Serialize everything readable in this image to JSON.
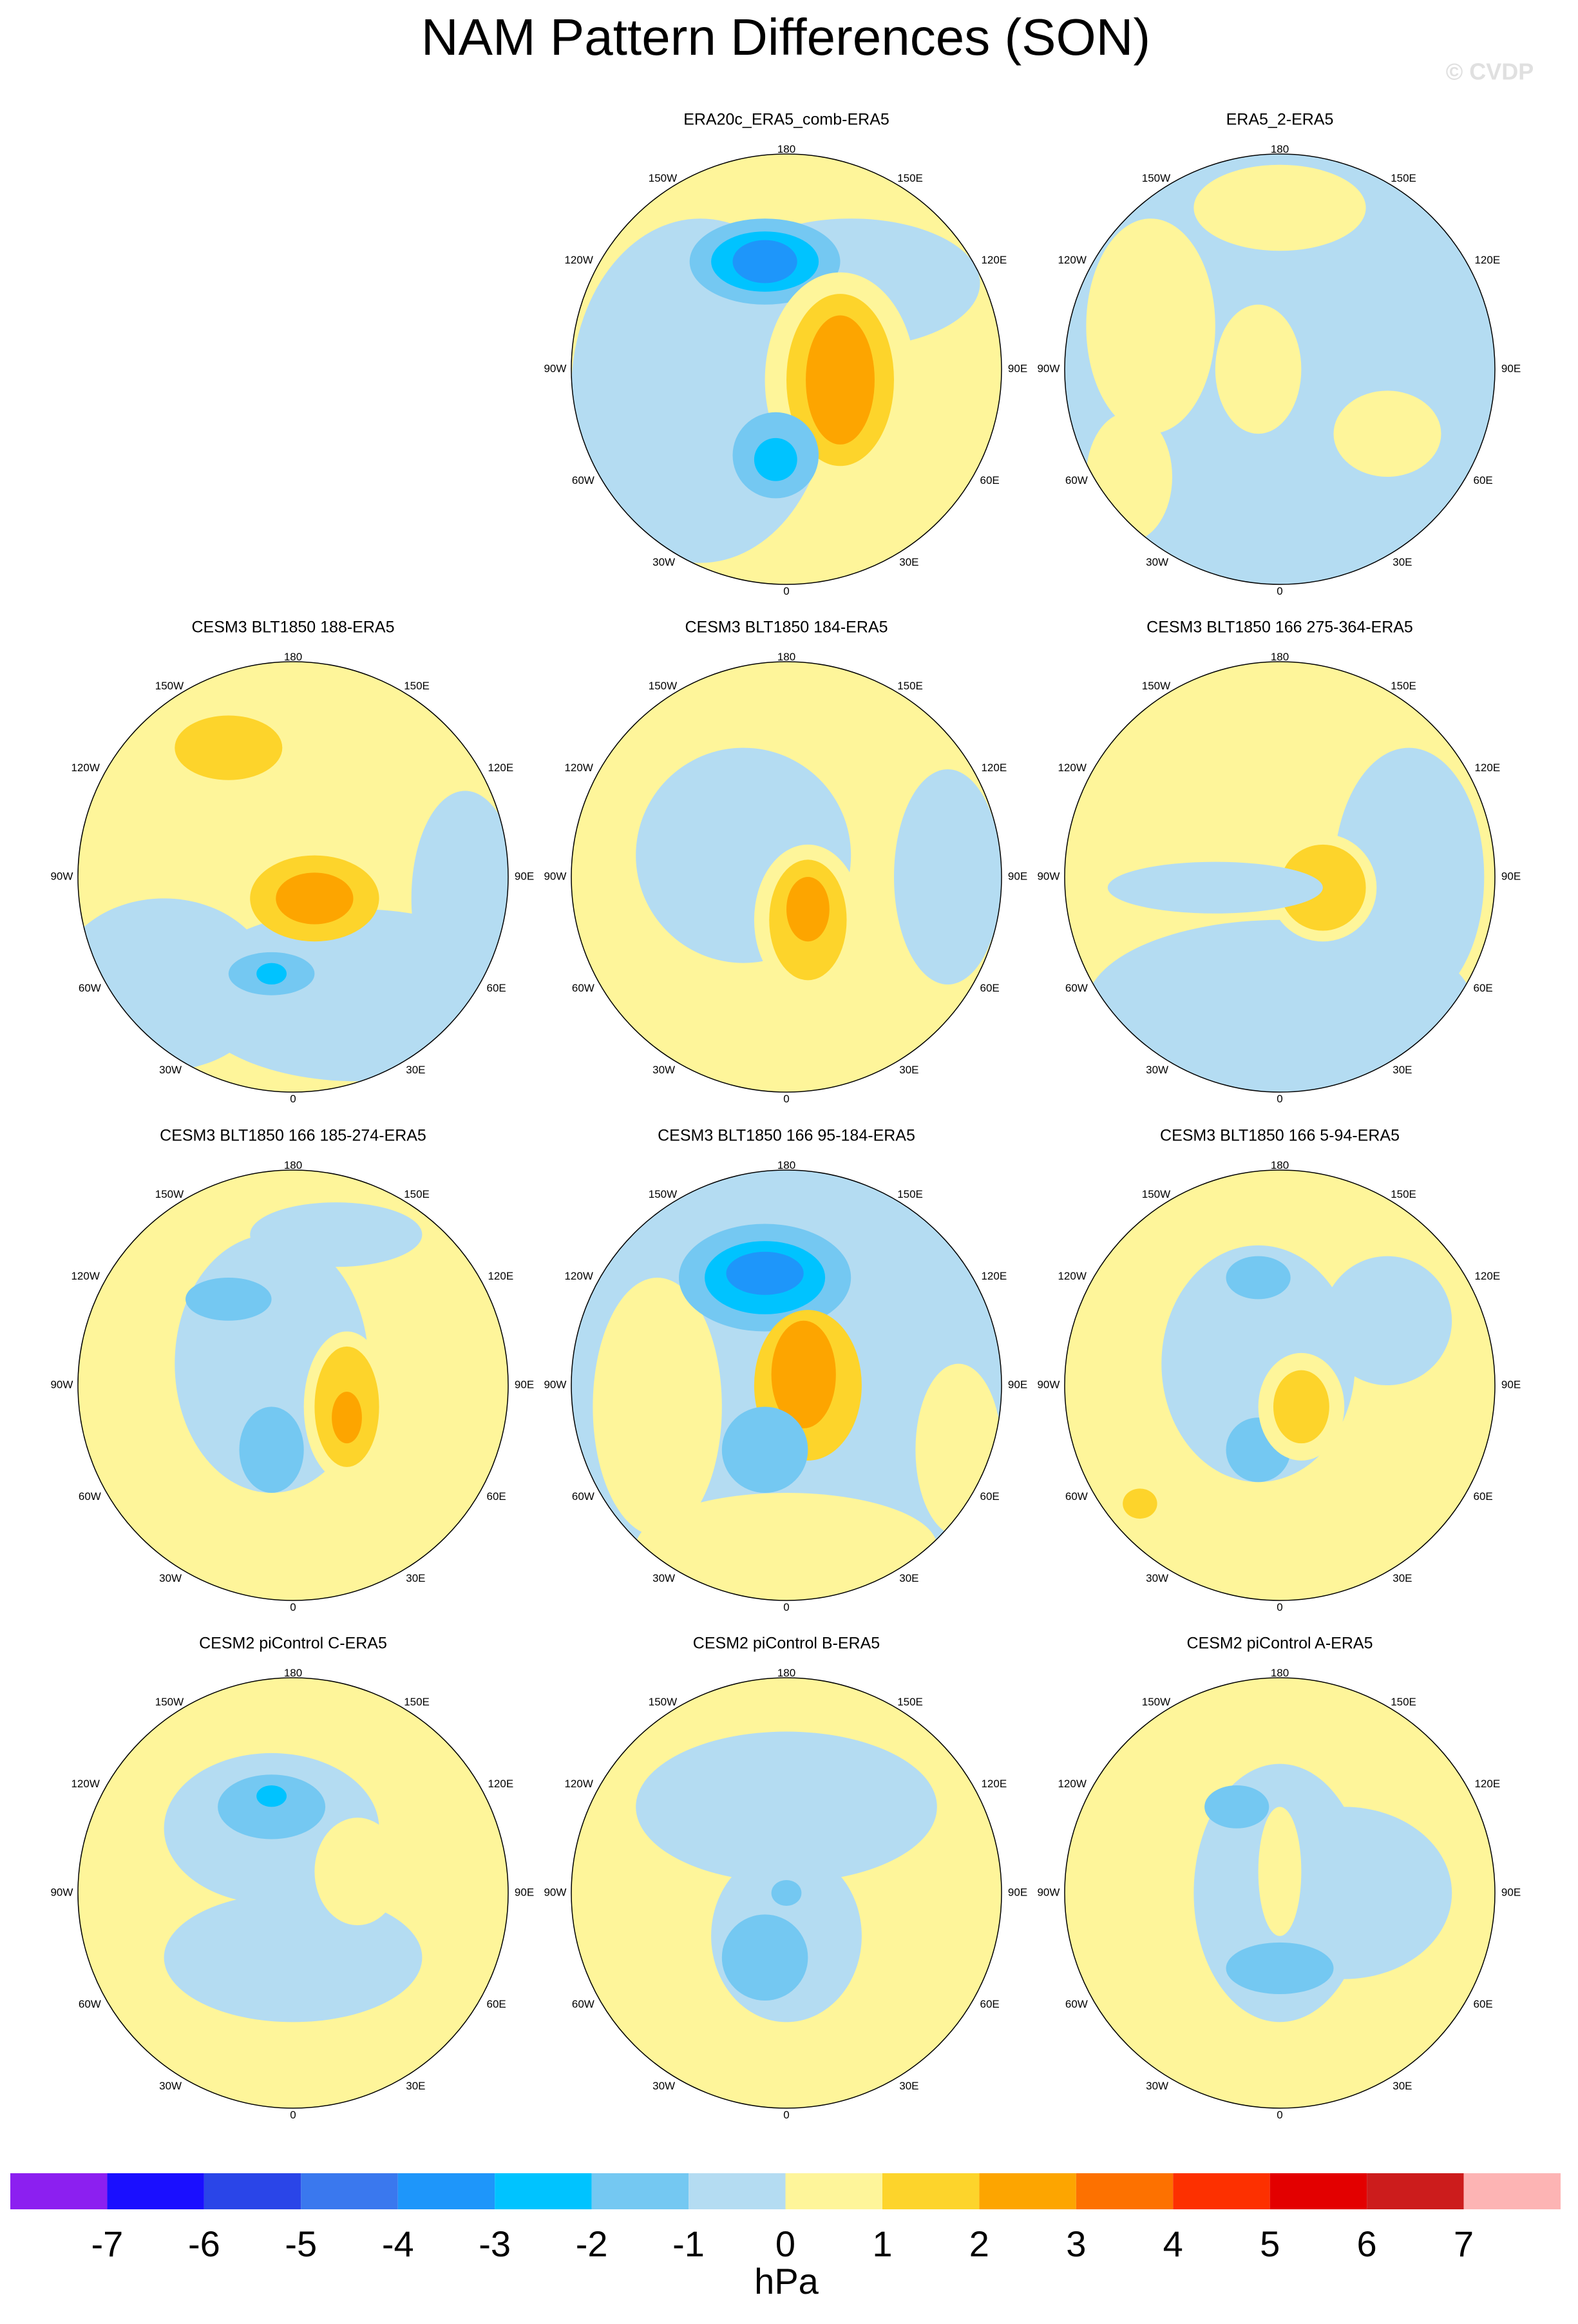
{
  "title": "NAM Pattern Differences (SON)",
  "watermark": "© CVDP",
  "lon_labels": [
    "180",
    "150W",
    "150E",
    "120W",
    "120E",
    "90W",
    "90E",
    "60W",
    "60E",
    "30W",
    "30E",
    "0"
  ],
  "panels": [
    {
      "title": "ERA20c_ERA5_comb-ERA5"
    },
    {
      "title": "ERA5_2-ERA5"
    },
    {
      "title": "CESM3 BLT1850 188-ERA5"
    },
    {
      "title": "CESM3 BLT1850 184-ERA5"
    },
    {
      "title": "CESM3 BLT1850 166 275-364-ERA5"
    },
    {
      "title": "CESM3 BLT1850 166 185-274-ERA5"
    },
    {
      "title": "CESM3 BLT1850 166 95-184-ERA5"
    },
    {
      "title": "CESM3 BLT1850 166 5-94-ERA5"
    },
    {
      "title": "CESM2 piControl C-ERA5"
    },
    {
      "title": "CESM2 piControl B-ERA5"
    },
    {
      "title": "CESM2 piControl A-ERA5"
    }
  ],
  "colorbar": {
    "ticks": [
      -7,
      -6,
      -5,
      -4,
      -3,
      -2,
      -1,
      0,
      1,
      2,
      3,
      4,
      5,
      6,
      7
    ],
    "colors": [
      "#8c1ff0",
      "#1a0fff",
      "#2a45e8",
      "#3a78ee",
      "#1e96fa",
      "#00c3ff",
      "#74c8f2",
      "#b4dcf2",
      "#fef59a",
      "#fdd42b",
      "#fda500",
      "#fd7100",
      "#fd3000",
      "#e30000",
      "#cc1c1c",
      "#fdb4b4"
    ],
    "label": "hPa"
  }
}
